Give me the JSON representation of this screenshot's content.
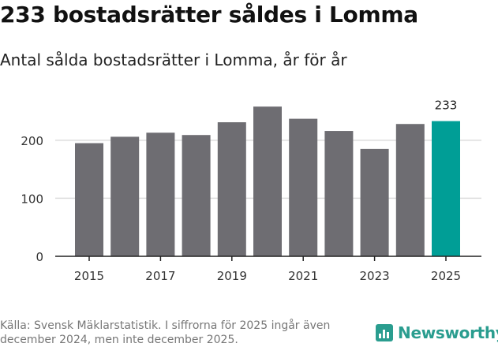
{
  "header": {
    "title": "233 bostadsrätter såldes i Lomma",
    "subtitle": "Antal sålda bostadsrätter i Lomma, år för år"
  },
  "chart_data": {
    "type": "bar",
    "title": "233 bostadsrätter såldes i Lomma",
    "subtitle": "Antal sålda bostadsrätter i Lomma, år för år",
    "categories": [
      "2015",
      "2016",
      "2017",
      "2018",
      "2019",
      "2020",
      "2021",
      "2022",
      "2023",
      "2024",
      "2025"
    ],
    "values": [
      195,
      206,
      213,
      209,
      231,
      258,
      237,
      216,
      185,
      228,
      233
    ],
    "x_tick_labels": [
      "2015",
      "2017",
      "2019",
      "2021",
      "2023",
      "2025"
    ],
    "y_ticks": [
      0,
      100,
      200
    ],
    "ylim": [
      0,
      265
    ],
    "grid": true,
    "highlight_index": 10,
    "highlight_label": "233",
    "colors": {
      "bar": "#6e6d72",
      "highlight": "#009e96",
      "grid": "#dddddd",
      "axis": "#222222"
    },
    "xlabel": "",
    "ylabel": ""
  },
  "footer": {
    "source": "Källa: Svensk Mäklarstatistik. I siffrorna för 2025 ingår även december 2024, men inte december 2025.",
    "brand": "Newsworthy"
  }
}
